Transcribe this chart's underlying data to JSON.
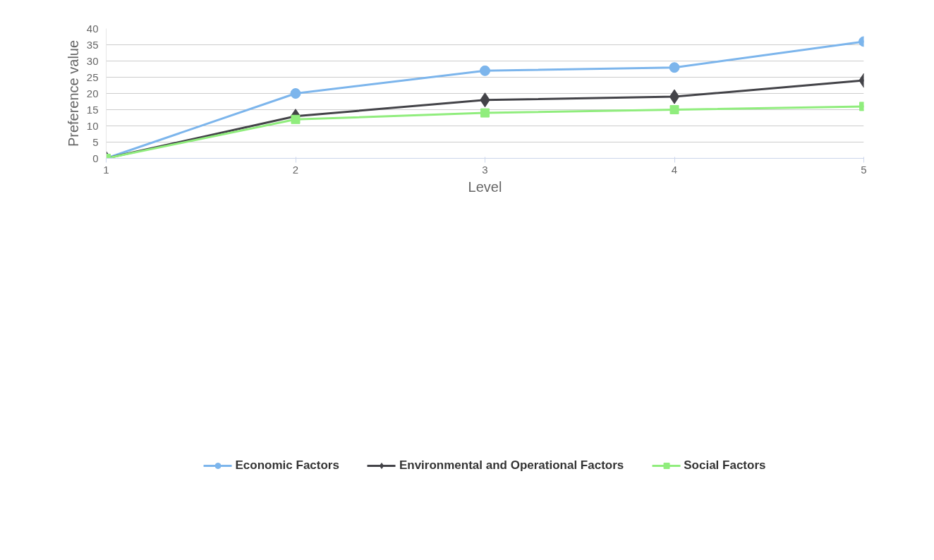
{
  "chart_data": {
    "type": "line",
    "xlabel": "Level",
    "ylabel": "Preference value",
    "x": [
      1,
      2,
      3,
      4,
      5
    ],
    "series": [
      {
        "name": "Economic Factors",
        "color": "#7cb5ec",
        "marker": "circle",
        "values": [
          0,
          20,
          27,
          28,
          36
        ]
      },
      {
        "name": "Environmental and Operational Factors",
        "color": "#434348",
        "marker": "diamond",
        "values": [
          0,
          13,
          18,
          19,
          24
        ]
      },
      {
        "name": "Social Factors",
        "color": "#90ed7d",
        "marker": "square",
        "values": [
          0,
          12,
          14,
          15,
          16
        ]
      }
    ],
    "xlim": [
      1,
      5
    ],
    "xticks": [
      1,
      2,
      3,
      4,
      5
    ],
    "ylim": [
      0,
      40
    ],
    "yticks": [
      0,
      5,
      10,
      15,
      20,
      25,
      30,
      35,
      40
    ],
    "grid": "y",
    "legend": "bottom",
    "line_style": "solid"
  }
}
